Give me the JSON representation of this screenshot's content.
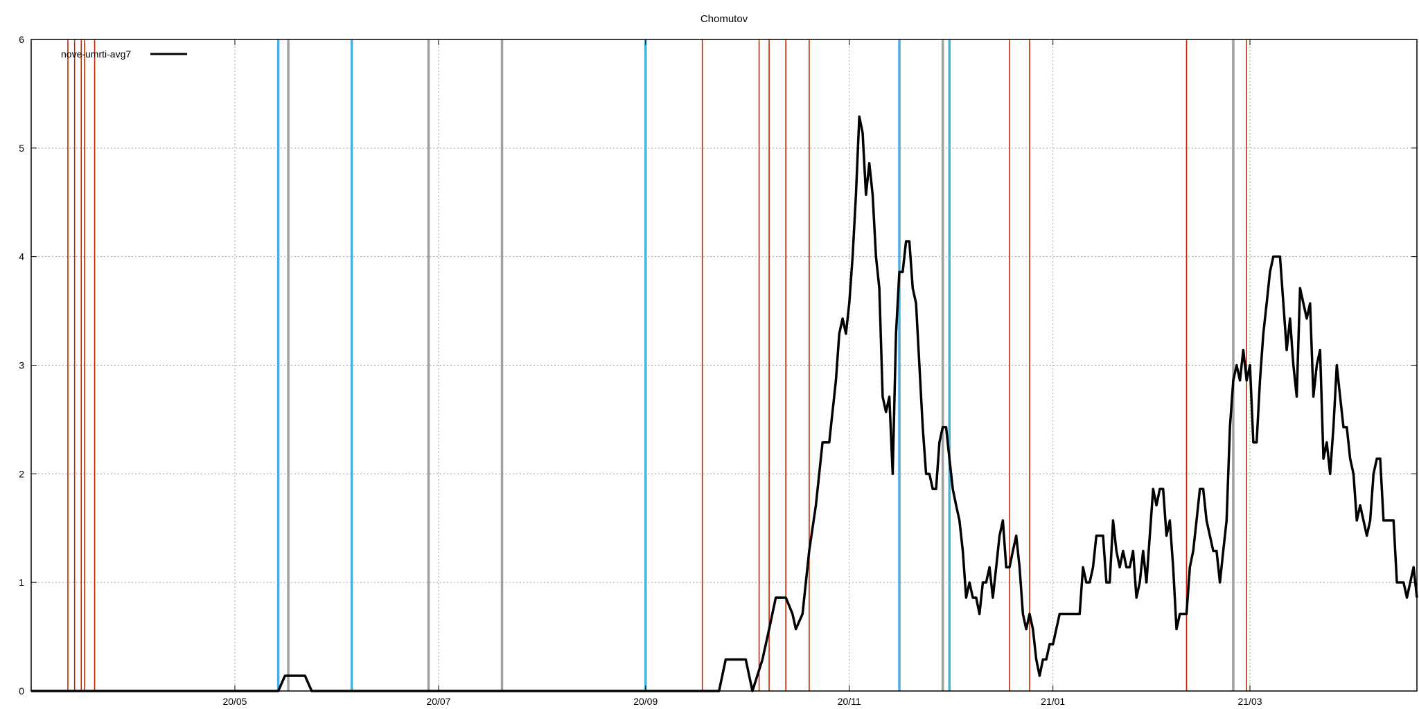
{
  "chart_data": {
    "type": "line",
    "title": "Chomutov",
    "xlabel": "",
    "ylabel": "",
    "x_range": [
      "2020-03-01",
      "2021-04-20"
    ],
    "ylim": [
      0,
      6
    ],
    "y_ticks": [
      0,
      1,
      2,
      3,
      4,
      5,
      6
    ],
    "x_ticks": [
      {
        "date": "2020-05-01",
        "label": "20/05"
      },
      {
        "date": "2020-07-01",
        "label": "20/07"
      },
      {
        "date": "2020-09-01",
        "label": "20/09"
      },
      {
        "date": "2020-11-01",
        "label": "20/11"
      },
      {
        "date": "2021-01-01",
        "label": "21/01"
      },
      {
        "date": "2021-03-01",
        "label": "21/03"
      }
    ],
    "grid": true,
    "legend_position": "top-left",
    "series": [
      {
        "name": "nove-umrti-avg7",
        "color": "#000000",
        "points": [
          [
            "2020-03-01",
            0
          ],
          [
            "2020-05-14",
            0
          ],
          [
            "2020-05-16",
            0.14
          ],
          [
            "2020-05-22",
            0.14
          ],
          [
            "2020-05-24",
            0
          ],
          [
            "2020-09-23",
            0
          ],
          [
            "2020-09-25",
            0.29
          ],
          [
            "2020-10-01",
            0.29
          ],
          [
            "2020-10-03",
            0
          ],
          [
            "2020-10-06",
            0.29
          ],
          [
            "2020-10-08",
            0.57
          ],
          [
            "2020-10-10",
            0.86
          ],
          [
            "2020-10-13",
            0.86
          ],
          [
            "2020-10-15",
            0.71
          ],
          [
            "2020-10-16",
            0.57
          ],
          [
            "2020-10-18",
            0.71
          ],
          [
            "2020-10-20",
            1.29
          ],
          [
            "2020-10-22",
            1.71
          ],
          [
            "2020-10-24",
            2.29
          ],
          [
            "2020-10-26",
            2.29
          ],
          [
            "2020-10-28",
            2.86
          ],
          [
            "2020-10-29",
            3.29
          ],
          [
            "2020-10-30",
            3.43
          ],
          [
            "2020-10-31",
            3.29
          ],
          [
            "2020-11-01",
            3.57
          ],
          [
            "2020-11-02",
            4.0
          ],
          [
            "2020-11-03",
            4.57
          ],
          [
            "2020-11-04",
            5.29
          ],
          [
            "2020-11-05",
            5.14
          ],
          [
            "2020-11-06",
            4.57
          ],
          [
            "2020-11-07",
            4.86
          ],
          [
            "2020-11-08",
            4.57
          ],
          [
            "2020-11-09",
            4.0
          ],
          [
            "2020-11-10",
            3.71
          ],
          [
            "2020-11-11",
            2.71
          ],
          [
            "2020-11-12",
            2.57
          ],
          [
            "2020-11-13",
            2.71
          ],
          [
            "2020-11-14",
            2.0
          ],
          [
            "2020-11-15",
            3.29
          ],
          [
            "2020-11-16",
            3.86
          ],
          [
            "2020-11-17",
            3.86
          ],
          [
            "2020-11-18",
            4.14
          ],
          [
            "2020-11-19",
            4.14
          ],
          [
            "2020-11-20",
            3.71
          ],
          [
            "2020-11-21",
            3.57
          ],
          [
            "2020-11-22",
            3.0
          ],
          [
            "2020-11-23",
            2.43
          ],
          [
            "2020-11-24",
            2.0
          ],
          [
            "2020-11-25",
            2.0
          ],
          [
            "2020-11-26",
            1.86
          ],
          [
            "2020-11-27",
            1.86
          ],
          [
            "2020-11-28",
            2.29
          ],
          [
            "2020-11-29",
            2.43
          ],
          [
            "2020-11-30",
            2.43
          ],
          [
            "2020-12-01",
            2.14
          ],
          [
            "2020-12-02",
            1.86
          ],
          [
            "2020-12-03",
            1.71
          ],
          [
            "2020-12-04",
            1.57
          ],
          [
            "2020-12-05",
            1.29
          ],
          [
            "2020-12-06",
            0.86
          ],
          [
            "2020-12-07",
            1.0
          ],
          [
            "2020-12-08",
            0.86
          ],
          [
            "2020-12-09",
            0.86
          ],
          [
            "2020-12-10",
            0.71
          ],
          [
            "2020-12-11",
            1.0
          ],
          [
            "2020-12-12",
            1.0
          ],
          [
            "2020-12-13",
            1.14
          ],
          [
            "2020-12-14",
            0.86
          ],
          [
            "2020-12-15",
            1.14
          ],
          [
            "2020-12-16",
            1.43
          ],
          [
            "2020-12-17",
            1.57
          ],
          [
            "2020-12-18",
            1.14
          ],
          [
            "2020-12-19",
            1.14
          ],
          [
            "2020-12-20",
            1.29
          ],
          [
            "2020-12-21",
            1.43
          ],
          [
            "2020-12-22",
            1.14
          ],
          [
            "2020-12-23",
            0.71
          ],
          [
            "2020-12-24",
            0.57
          ],
          [
            "2020-12-25",
            0.71
          ],
          [
            "2020-12-26",
            0.57
          ],
          [
            "2020-12-27",
            0.29
          ],
          [
            "2020-12-28",
            0.14
          ],
          [
            "2020-12-29",
            0.29
          ],
          [
            "2020-12-30",
            0.29
          ],
          [
            "2020-12-31",
            0.43
          ],
          [
            "2021-01-01",
            0.43
          ],
          [
            "2021-01-02",
            0.57
          ],
          [
            "2021-01-03",
            0.71
          ],
          [
            "2021-01-04",
            0.71
          ],
          [
            "2021-01-09",
            0.71
          ],
          [
            "2021-01-10",
            1.14
          ],
          [
            "2021-01-11",
            1.0
          ],
          [
            "2021-01-12",
            1.0
          ],
          [
            "2021-01-13",
            1.14
          ],
          [
            "2021-01-14",
            1.43
          ],
          [
            "2021-01-16",
            1.43
          ],
          [
            "2021-01-17",
            1.0
          ],
          [
            "2021-01-18",
            1.0
          ],
          [
            "2021-01-19",
            1.57
          ],
          [
            "2021-01-20",
            1.29
          ],
          [
            "2021-01-21",
            1.14
          ],
          [
            "2021-01-22",
            1.29
          ],
          [
            "2021-01-23",
            1.14
          ],
          [
            "2021-01-24",
            1.14
          ],
          [
            "2021-01-25",
            1.29
          ],
          [
            "2021-01-26",
            0.86
          ],
          [
            "2021-01-27",
            1.0
          ],
          [
            "2021-01-28",
            1.29
          ],
          [
            "2021-01-29",
            1.0
          ],
          [
            "2021-01-30",
            1.43
          ],
          [
            "2021-01-31",
            1.86
          ],
          [
            "2021-02-01",
            1.71
          ],
          [
            "2021-02-02",
            1.86
          ],
          [
            "2021-02-03",
            1.86
          ],
          [
            "2021-02-04",
            1.43
          ],
          [
            "2021-02-05",
            1.57
          ],
          [
            "2021-02-06",
            1.14
          ],
          [
            "2021-02-07",
            0.57
          ],
          [
            "2021-02-08",
            0.71
          ],
          [
            "2021-02-10",
            0.71
          ],
          [
            "2021-02-11",
            1.14
          ],
          [
            "2021-02-12",
            1.29
          ],
          [
            "2021-02-13",
            1.57
          ],
          [
            "2021-02-14",
            1.86
          ],
          [
            "2021-02-15",
            1.86
          ],
          [
            "2021-02-16",
            1.57
          ],
          [
            "2021-02-17",
            1.43
          ],
          [
            "2021-02-18",
            1.29
          ],
          [
            "2021-02-19",
            1.29
          ],
          [
            "2021-02-20",
            1.0
          ],
          [
            "2021-02-21",
            1.29
          ],
          [
            "2021-02-22",
            1.57
          ],
          [
            "2021-02-23",
            2.43
          ],
          [
            "2021-02-24",
            2.86
          ],
          [
            "2021-02-25",
            3.0
          ],
          [
            "2021-02-26",
            2.86
          ],
          [
            "2021-02-27",
            3.14
          ],
          [
            "2021-02-28",
            2.86
          ],
          [
            "2021-03-01",
            3.0
          ],
          [
            "2021-03-02",
            2.29
          ],
          [
            "2021-03-03",
            2.29
          ],
          [
            "2021-03-04",
            2.86
          ],
          [
            "2021-03-05",
            3.29
          ],
          [
            "2021-03-06",
            3.57
          ],
          [
            "2021-03-07",
            3.86
          ],
          [
            "2021-03-08",
            4.0
          ],
          [
            "2021-03-10",
            4.0
          ],
          [
            "2021-03-11",
            3.57
          ],
          [
            "2021-03-12",
            3.14
          ],
          [
            "2021-03-13",
            3.43
          ],
          [
            "2021-03-14",
            3.0
          ],
          [
            "2021-03-15",
            2.71
          ],
          [
            "2021-03-16",
            3.71
          ],
          [
            "2021-03-17",
            3.57
          ],
          [
            "2021-03-18",
            3.43
          ],
          [
            "2021-03-19",
            3.57
          ],
          [
            "2021-03-20",
            2.71
          ],
          [
            "2021-03-21",
            3.0
          ],
          [
            "2021-03-22",
            3.14
          ],
          [
            "2021-03-23",
            2.14
          ],
          [
            "2021-03-24",
            2.29
          ],
          [
            "2021-03-25",
            2.0
          ],
          [
            "2021-03-26",
            2.43
          ],
          [
            "2021-03-27",
            3.0
          ],
          [
            "2021-03-28",
            2.71
          ],
          [
            "2021-03-29",
            2.43
          ],
          [
            "2021-03-30",
            2.43
          ],
          [
            "2021-03-31",
            2.14
          ],
          [
            "2021-04-01",
            2.0
          ],
          [
            "2021-04-02",
            1.57
          ],
          [
            "2021-04-03",
            1.71
          ],
          [
            "2021-04-04",
            1.57
          ],
          [
            "2021-04-05",
            1.43
          ],
          [
            "2021-04-06",
            1.57
          ],
          [
            "2021-04-07",
            2.0
          ],
          [
            "2021-04-08",
            2.14
          ],
          [
            "2021-04-09",
            2.14
          ],
          [
            "2021-04-10",
            1.57
          ],
          [
            "2021-04-13",
            1.57
          ],
          [
            "2021-04-14",
            1.0
          ],
          [
            "2021-04-16",
            1.0
          ],
          [
            "2021-04-17",
            0.86
          ],
          [
            "2021-04-18",
            1.0
          ],
          [
            "2021-04-19",
            1.14
          ],
          [
            "2021-04-20",
            0.86
          ]
        ]
      }
    ],
    "event_lines": [
      {
        "date": "2020-03-12",
        "color": "#cc2200"
      },
      {
        "date": "2020-03-14",
        "color": "#cc2200"
      },
      {
        "date": "2020-03-16",
        "color": "#cc2200"
      },
      {
        "date": "2020-03-17",
        "color": "#cc2200"
      },
      {
        "date": "2020-03-20",
        "color": "#cc2200"
      },
      {
        "date": "2020-05-14",
        "color": "#4ab0e0"
      },
      {
        "date": "2020-05-17",
        "color": "#a0a0a0"
      },
      {
        "date": "2020-06-05",
        "color": "#4ab0e0"
      },
      {
        "date": "2020-06-28",
        "color": "#a0a0a0"
      },
      {
        "date": "2020-07-20",
        "color": "#a0a0a0"
      },
      {
        "date": "2020-09-01",
        "color": "#4ab0e0"
      },
      {
        "date": "2020-09-18",
        "color": "#cc2200"
      },
      {
        "date": "2020-10-05",
        "color": "#cc2200"
      },
      {
        "date": "2020-10-08",
        "color": "#cc2200"
      },
      {
        "date": "2020-10-13",
        "color": "#cc2200"
      },
      {
        "date": "2020-10-20",
        "color": "#cc2200"
      },
      {
        "date": "2020-11-16",
        "color": "#4ab0e0"
      },
      {
        "date": "2020-11-29",
        "color": "#a0a0a0"
      },
      {
        "date": "2020-12-01",
        "color": "#4ab0e0"
      },
      {
        "date": "2020-12-19",
        "color": "#cc2200"
      },
      {
        "date": "2020-12-25",
        "color": "#cc2200"
      },
      {
        "date": "2021-02-10",
        "color": "#cc2200"
      },
      {
        "date": "2021-02-24",
        "color": "#a0a0a0"
      },
      {
        "date": "2021-02-28",
        "color": "#cc2200"
      }
    ]
  }
}
